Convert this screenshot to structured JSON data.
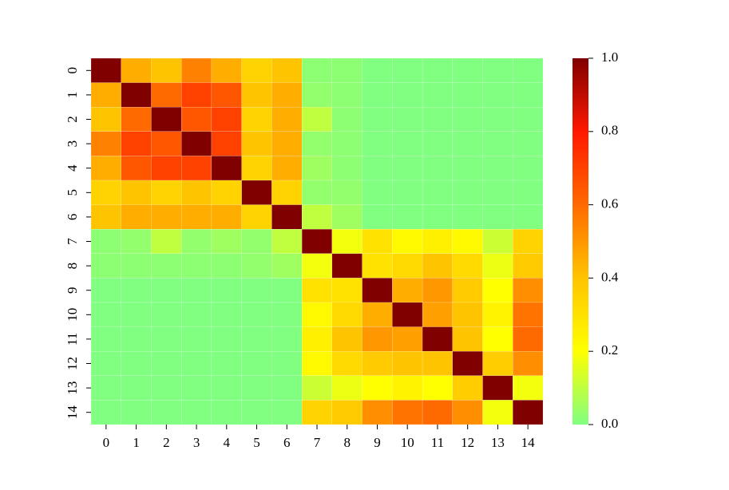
{
  "chart_data": {
    "type": "heatmap",
    "categories": [
      "0",
      "1",
      "2",
      "3",
      "4",
      "5",
      "6",
      "7",
      "8",
      "9",
      "10",
      "11",
      "12",
      "13",
      "14"
    ],
    "values": [
      [
        1,
        0.45,
        0.4,
        0.55,
        0.45,
        0.35,
        0.4,
        0.02,
        0.02,
        0,
        0,
        0,
        0,
        0,
        0
      ],
      [
        0.45,
        1,
        0.6,
        0.7,
        0.65,
        0.4,
        0.45,
        0.03,
        0.02,
        0,
        0,
        0,
        0,
        0,
        0
      ],
      [
        0.4,
        0.6,
        1,
        0.65,
        0.7,
        0.35,
        0.45,
        0.1,
        0.02,
        0,
        0,
        0,
        0,
        0,
        0
      ],
      [
        0.55,
        0.7,
        0.65,
        1,
        0.7,
        0.4,
        0.45,
        0.03,
        0.02,
        0,
        0,
        0,
        0,
        0,
        0
      ],
      [
        0.45,
        0.65,
        0.7,
        0.7,
        1,
        0.35,
        0.45,
        0.05,
        0.02,
        0,
        0,
        0,
        0,
        0,
        0
      ],
      [
        0.35,
        0.4,
        0.35,
        0.4,
        0.35,
        1,
        0.35,
        0.03,
        0.03,
        0,
        0,
        0,
        0,
        0,
        0
      ],
      [
        0.4,
        0.45,
        0.45,
        0.45,
        0.45,
        0.35,
        1,
        0.1,
        0.05,
        0,
        0,
        0,
        0,
        0,
        0
      ],
      [
        0.02,
        0.03,
        0.1,
        0.03,
        0.05,
        0.03,
        0.1,
        1,
        0.18,
        0.3,
        0.22,
        0.25,
        0.22,
        0.12,
        0.35
      ],
      [
        0.02,
        0.02,
        0.02,
        0.02,
        0.02,
        0.03,
        0.05,
        0.18,
        1,
        0.3,
        0.33,
        0.4,
        0.33,
        0.17,
        0.38
      ],
      [
        0,
        0,
        0,
        0,
        0,
        0,
        0,
        0.3,
        0.3,
        1,
        0.45,
        0.5,
        0.38,
        0.2,
        0.52
      ],
      [
        0,
        0,
        0,
        0,
        0,
        0,
        0,
        0.22,
        0.33,
        0.45,
        1,
        0.48,
        0.4,
        0.24,
        0.58
      ],
      [
        0,
        0,
        0,
        0,
        0,
        0,
        0,
        0.25,
        0.4,
        0.5,
        0.48,
        1,
        0.4,
        0.2,
        0.6
      ],
      [
        0,
        0,
        0,
        0,
        0,
        0,
        0,
        0.22,
        0.33,
        0.38,
        0.4,
        0.4,
        1,
        0.37,
        0.52
      ],
      [
        0,
        0,
        0,
        0,
        0,
        0,
        0,
        0.12,
        0.17,
        0.2,
        0.24,
        0.2,
        0.37,
        1,
        0.18
      ],
      [
        0,
        0,
        0,
        0,
        0,
        0,
        0,
        0.35,
        0.38,
        0.52,
        0.58,
        0.6,
        0.52,
        0.18,
        1
      ]
    ],
    "zlim": [
      0,
      1
    ],
    "colorscale": [
      "#80ff80",
      "#ffff00",
      "#ffc400",
      "#ff6a00",
      "#ff1800",
      "#800000"
    ],
    "zticks": [
      {
        "value": 0,
        "label": "0.0"
      },
      {
        "value": 0.2,
        "label": "0.2"
      },
      {
        "value": 0.4,
        "label": "0.4"
      },
      {
        "value": 0.6,
        "label": "0.6"
      },
      {
        "value": 0.8,
        "label": "0.8"
      },
      {
        "value": 1,
        "label": "1.0"
      }
    ]
  }
}
